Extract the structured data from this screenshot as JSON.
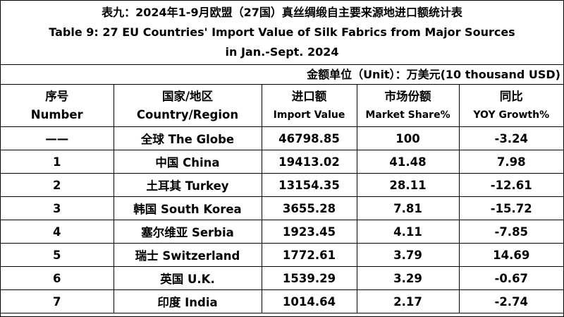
{
  "header": {
    "title": [
      "表九：2024年1-9月欧盟（27国）真丝绸缎自主要来源地进口额统计表",
      "Table 9: 27 EU Countries' Import Value of Silk Fabrics from Major Sources",
      "in Jan.-Sept. 2024"
    ],
    "unit": "金额单位（Unit）：万美元(10 thousand USD)"
  },
  "table": {
    "columns": [
      [
        "序号",
        "Number"
      ],
      [
        "国家/地区",
        "Country/Region"
      ],
      [
        "进口额",
        "Import Value"
      ],
      [
        "市场份额",
        "Market Share%"
      ],
      [
        "同比",
        "YOY Growth%"
      ]
    ],
    "rows": [
      [
        "——",
        "全球 The Globe",
        46798.85,
        100,
        -3.24
      ],
      [
        1,
        "中国 China",
        19413.02,
        41.48,
        7.98
      ],
      [
        2,
        "土耳其 Turkey",
        13154.35,
        28.11,
        -12.61
      ],
      [
        3,
        "韩国 South Korea",
        3655.28,
        7.81,
        -15.72
      ],
      [
        4,
        "塞尔维亚 Serbia",
        1923.45,
        4.11,
        -7.85
      ],
      [
        5,
        "瑞士 Switzerland",
        1772.61,
        3.79,
        14.69
      ],
      [
        6,
        "英国 U.K.",
        1539.29,
        3.29,
        -0.67
      ],
      [
        7,
        "印度 India",
        1014.64,
        2.17,
        -2.74
      ]
    ]
  }
}
